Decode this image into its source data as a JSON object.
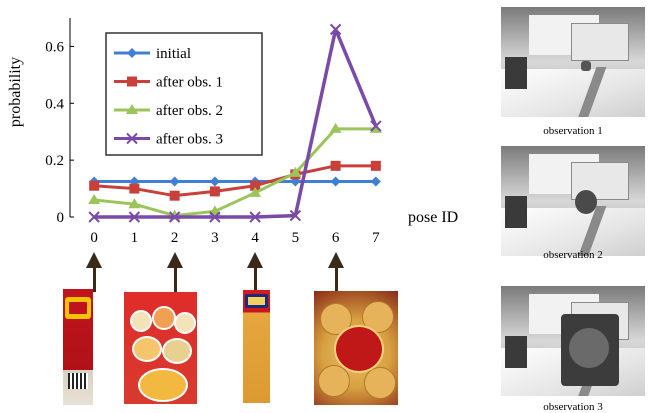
{
  "chart_data": {
    "type": "line",
    "title": "",
    "xlabel": "pose ID",
    "ylabel": "probability",
    "x": [
      0,
      1,
      2,
      3,
      4,
      5,
      6,
      7
    ],
    "xticks": [
      "0",
      "1",
      "2",
      "3",
      "4",
      "5",
      "6",
      "7"
    ],
    "yticks": [
      "0",
      "0.2",
      "0.4",
      "0.6"
    ],
    "ylim": [
      0,
      0.7
    ],
    "xlim": [
      -0.6,
      7.6
    ],
    "grid": false,
    "legend": "top-left",
    "series": [
      {
        "name": "initial",
        "color": "#3f7fd6",
        "marker": "diamond",
        "values": [
          0.125,
          0.125,
          0.125,
          0.125,
          0.125,
          0.125,
          0.125,
          0.125
        ]
      },
      {
        "name": "after obs. 1",
        "color": "#c8403a",
        "marker": "square",
        "values": [
          0.11,
          0.1,
          0.075,
          0.09,
          0.11,
          0.15,
          0.18,
          0.18
        ]
      },
      {
        "name": "after obs. 2",
        "color": "#9bc45a",
        "marker": "triangle",
        "values": [
          0.06,
          0.045,
          0.005,
          0.02,
          0.085,
          0.155,
          0.31,
          0.31
        ]
      },
      {
        "name": "after obs. 3",
        "color": "#7a4aa8",
        "marker": "x",
        "values": [
          0.0,
          0.0,
          0.0,
          0.0,
          0.0,
          0.005,
          0.66,
          0.32
        ]
      }
    ]
  },
  "arrows": {
    "pose_ids": [
      0,
      2,
      4,
      6
    ]
  },
  "products": [
    "product-0",
    "product-2",
    "product-4",
    "product-6"
  ],
  "observations": [
    {
      "caption": "observation 1"
    },
    {
      "caption": "observation 2"
    },
    {
      "caption": "observation 3"
    }
  ]
}
